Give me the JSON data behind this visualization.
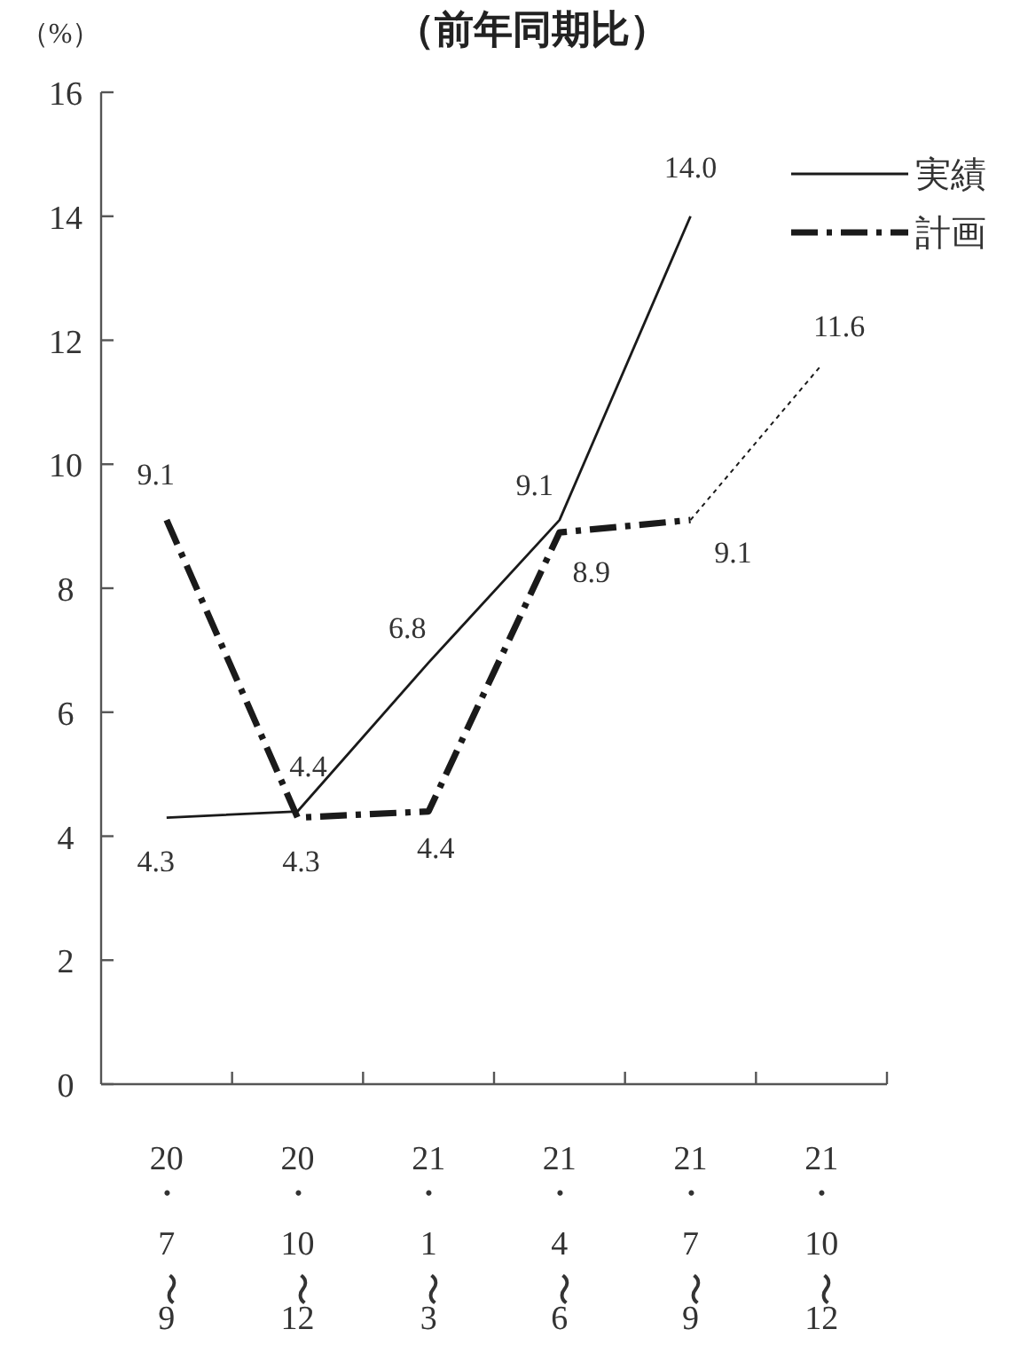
{
  "chart_data": {
    "type": "line",
    "title": "（前年同期比）",
    "ylabel": "（%）",
    "categories": [
      "20・7〜9",
      "20・10〜12",
      "21・1〜3",
      "21・4〜6",
      "21・7〜9",
      "21・10〜12"
    ],
    "ylim": [
      0,
      16
    ],
    "yticks": [
      0,
      2,
      4,
      6,
      8,
      10,
      12,
      14,
      16
    ],
    "grid": false,
    "legend": "top right",
    "marker": "none",
    "series": [
      {
        "name": "実績",
        "color": "#1a1a1a",
        "line_style": "solid",
        "values": [
          4.3,
          4.4,
          6.8,
          9.1,
          14.0,
          null
        ],
        "value_labels": [
          "4.3",
          "4.4",
          "6.8",
          "9.1",
          "14.0",
          null
        ]
      },
      {
        "name": "計画",
        "color": "#1a1a1a",
        "line_style": "dashed",
        "values": [
          9.1,
          4.3,
          4.4,
          8.9,
          9.1,
          null
        ],
        "value_labels": [
          "9.1",
          "4.3",
          "4.4",
          "8.9",
          "9.1",
          null
        ]
      },
      {
        "color": "#1a1a1a",
        "line_style": "dotted",
        "values": [
          null,
          null,
          null,
          null,
          9.1,
          11.6
        ],
        "value_labels": [
          null,
          null,
          null,
          null,
          null,
          "11.6"
        ]
      }
    ]
  }
}
